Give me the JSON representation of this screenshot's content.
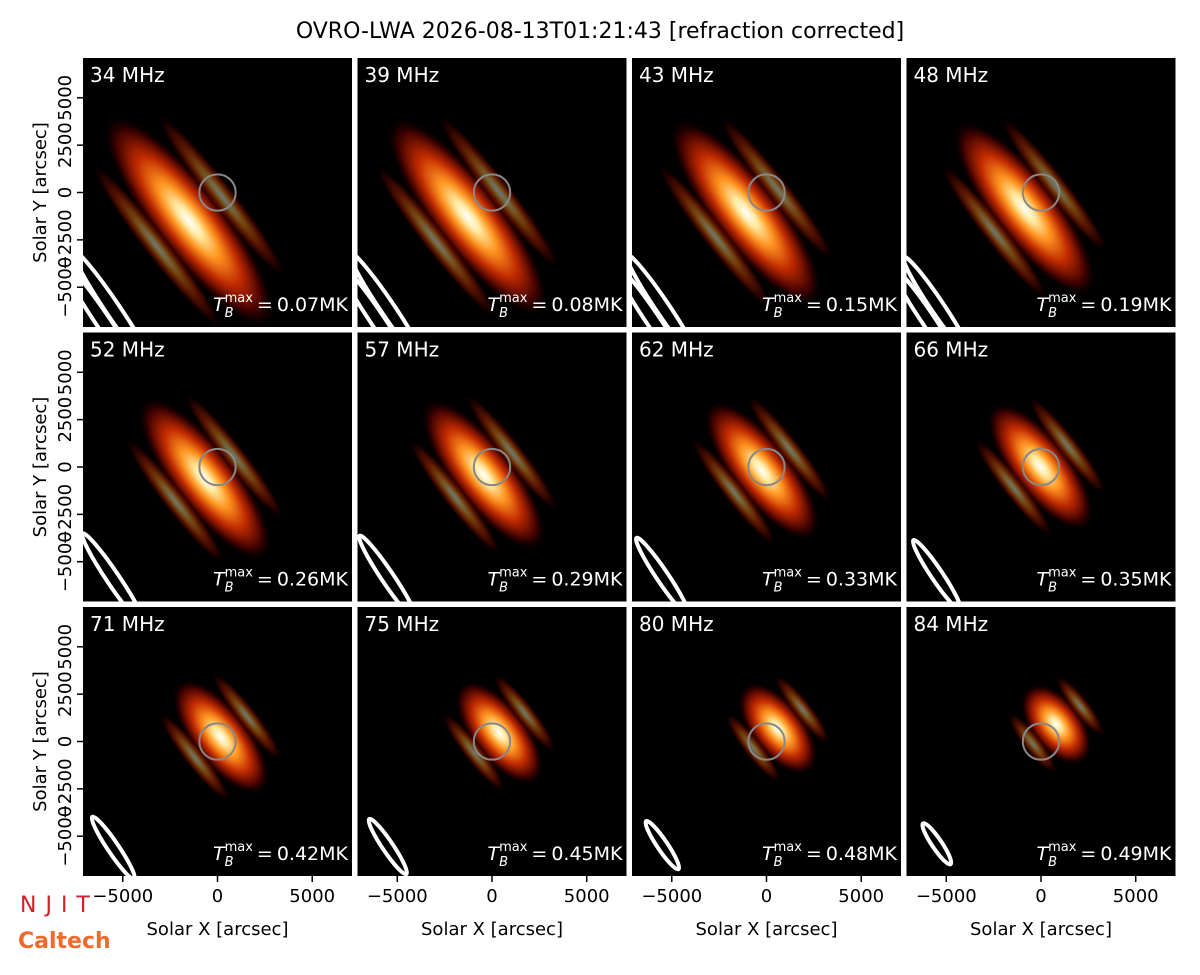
{
  "chart_data": {
    "type": "heatmap",
    "title": "OVRO-LWA 2026-08-13T01:21:43 [refraction corrected]",
    "xlabel": "Solar X [arcsec]",
    "ylabel": "Solar Y [arcsec]",
    "xlim": [
      -7100,
      7100
    ],
    "ylim": [
      -7100,
      7100
    ],
    "xticks": [
      {
        "value": -5000,
        "label": "−5000"
      },
      0,
      5000
    ],
    "yticks": [
      {
        "value": -5000,
        "label": "−5000"
      },
      {
        "value": -2500,
        "label": "−2500"
      },
      0,
      2500,
      5000
    ],
    "tb_symbol": {
      "base": "T",
      "sub": "B",
      "sup": "max",
      "relation": "="
    },
    "panels": [
      {
        "frequency": "34 MHz",
        "tmax": "0.07MK"
      },
      {
        "frequency": "39 MHz",
        "tmax": "0.08MK"
      },
      {
        "frequency": "43 MHz",
        "tmax": "0.15MK"
      },
      {
        "frequency": "48 MHz",
        "tmax": "0.19MK"
      },
      {
        "frequency": "52 MHz",
        "tmax": "0.26MK"
      },
      {
        "frequency": "57 MHz",
        "tmax": "0.29MK"
      },
      {
        "frequency": "62 MHz",
        "tmax": "0.33MK"
      },
      {
        "frequency": "66 MHz",
        "tmax": "0.35MK"
      },
      {
        "frequency": "71 MHz",
        "tmax": "0.42MK"
      },
      {
        "frequency": "75 MHz",
        "tmax": "0.45MK"
      },
      {
        "frequency": "80 MHz",
        "tmax": "0.48MK"
      },
      {
        "frequency": "84 MHz",
        "tmax": "0.49MK"
      }
    ]
  },
  "logos": {
    "njit": "NJIT",
    "caltech": "Caltech"
  }
}
